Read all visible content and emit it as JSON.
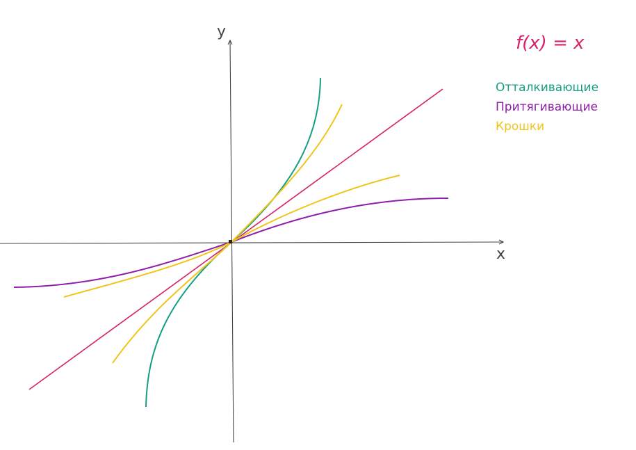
{
  "formula": {
    "text": "f(x) = x",
    "color": "#d6206a"
  },
  "axes": {
    "x_label": "x",
    "y_label": "y",
    "color": "#444444"
  },
  "legend": [
    {
      "label": "Отталкивающие",
      "color": "#169e85"
    },
    {
      "label": "Притягивающие",
      "color": "#8e1fa8"
    },
    {
      "label": "Крошки",
      "color": "#f0c419"
    }
  ],
  "curves": [
    {
      "kind": "identity",
      "color": "#d6206a"
    },
    {
      "kind": "repelling",
      "color": "#169e85"
    },
    {
      "kind": "attracting",
      "color": "#8e1fa8"
    },
    {
      "kind": "crumbs-steep",
      "color": "#f0c419"
    },
    {
      "kind": "crumbs-shallow",
      "color": "#f0c419"
    }
  ]
}
